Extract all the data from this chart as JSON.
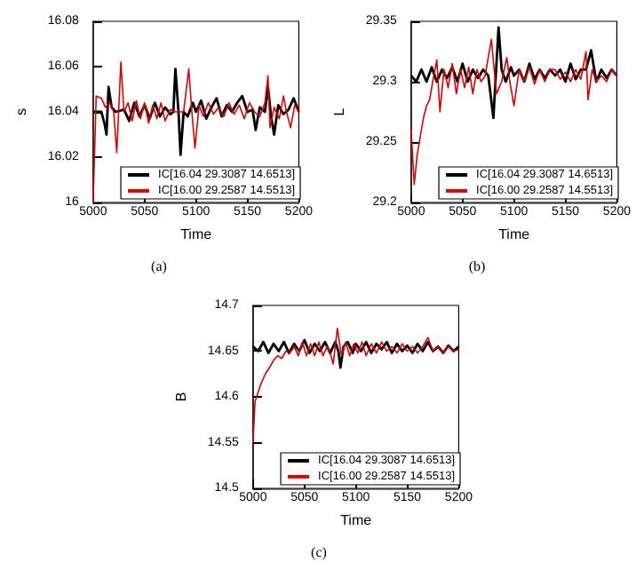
{
  "chart_data": [
    {
      "type": "line",
      "xlabel": "Time",
      "ylabel": "s",
      "xlim": [
        5000,
        5200
      ],
      "xticks": [
        5000,
        5050,
        5100,
        5150,
        5200
      ],
      "ylim": [
        16,
        16.08
      ],
      "yticks": [
        16,
        16.02,
        16.04,
        16.06,
        16.08
      ],
      "legend": "bottom right",
      "grid": false,
      "annotations": [
        "(a)"
      ],
      "series": [
        {
          "name": "IC[16.04 29.3087 14.6513]",
          "color": "#000000",
          "x": [
            5000,
            5008,
            5011,
            5013,
            5015,
            5018,
            5022,
            5030,
            5035,
            5040,
            5045,
            5050,
            5055,
            5060,
            5065,
            5070,
            5075,
            5078,
            5080,
            5083,
            5085,
            5088,
            5092,
            5097,
            5100,
            5105,
            5110,
            5115,
            5120,
            5125,
            5130,
            5135,
            5140,
            5145,
            5150,
            5155,
            5158,
            5162,
            5167,
            5170,
            5173,
            5176,
            5180,
            5185,
            5190,
            5195,
            5200
          ],
          "values": [
            16.04,
            16.04,
            16.035,
            16.03,
            16.051,
            16.042,
            16.04,
            16.041,
            16.036,
            16.044,
            16.038,
            16.043,
            16.037,
            16.044,
            16.038,
            16.042,
            16.039,
            16.04,
            16.059,
            16.04,
            16.021,
            16.04,
            16.038,
            16.044,
            16.04,
            16.045,
            16.037,
            16.042,
            16.046,
            16.038,
            16.043,
            16.04,
            16.044,
            16.047,
            16.04,
            16.041,
            16.032,
            16.042,
            16.04,
            16.051,
            16.038,
            16.03,
            16.043,
            16.039,
            16.041,
            16.046,
            16.04
          ]
        },
        {
          "name": "IC[16.00 29.2587 14.5513]",
          "color": "#e00000",
          "x": [
            5000,
            5003,
            5008,
            5012,
            5016,
            5020,
            5023,
            5027,
            5030,
            5034,
            5038,
            5042,
            5046,
            5050,
            5054,
            5058,
            5062,
            5066,
            5070,
            5075,
            5080,
            5088,
            5093,
            5096,
            5099,
            5103,
            5107,
            5112,
            5117,
            5122,
            5127,
            5132,
            5137,
            5142,
            5147,
            5152,
            5157,
            5162,
            5167,
            5170,
            5172,
            5176,
            5181,
            5185,
            5188,
            5192,
            5196,
            5200
          ],
          "values": [
            16.0,
            16.047,
            16.046,
            16.042,
            16.044,
            16.04,
            16.022,
            16.062,
            16.04,
            16.044,
            16.036,
            16.045,
            16.037,
            16.044,
            16.035,
            16.043,
            16.037,
            16.044,
            16.036,
            16.041,
            16.04,
            16.04,
            16.059,
            16.04,
            16.024,
            16.043,
            16.038,
            16.044,
            16.039,
            16.042,
            16.038,
            16.044,
            16.039,
            16.043,
            16.037,
            16.044,
            16.04,
            16.038,
            16.044,
            16.056,
            16.033,
            16.042,
            16.037,
            16.047,
            16.04,
            16.033,
            16.043,
            16.04
          ]
        }
      ]
    },
    {
      "type": "line",
      "xlabel": "Time",
      "ylabel": "L",
      "xlim": [
        5000,
        5200
      ],
      "xticks": [
        5000,
        5050,
        5100,
        5150,
        5200
      ],
      "ylim": [
        29.2,
        29.35
      ],
      "yticks": [
        29.2,
        29.25,
        29.3,
        29.35
      ],
      "legend": "bottom right",
      "grid": false,
      "annotations": [
        "(b)"
      ],
      "series": [
        {
          "name": "IC[16.04 29.3087 14.6513]",
          "color": "#000000",
          "x": [
            5000,
            5005,
            5010,
            5015,
            5020,
            5025,
            5030,
            5035,
            5040,
            5045,
            5050,
            5055,
            5060,
            5065,
            5070,
            5075,
            5080,
            5082,
            5085,
            5088,
            5092,
            5097,
            5100,
            5105,
            5110,
            5115,
            5120,
            5125,
            5130,
            5135,
            5140,
            5145,
            5150,
            5155,
            5160,
            5165,
            5170,
            5175,
            5180,
            5185,
            5190,
            5195,
            5200
          ],
          "values": [
            29.305,
            29.3,
            29.31,
            29.3,
            29.312,
            29.3,
            29.31,
            29.303,
            29.312,
            29.3,
            29.315,
            29.3,
            29.31,
            29.303,
            29.31,
            29.305,
            29.27,
            29.3,
            29.345,
            29.31,
            29.3,
            29.312,
            29.305,
            29.31,
            29.3,
            29.315,
            29.302,
            29.31,
            29.303,
            29.31,
            29.305,
            29.31,
            29.3,
            29.315,
            29.302,
            29.31,
            29.31,
            29.326,
            29.3,
            29.31,
            29.303,
            29.31,
            29.305
          ]
        },
        {
          "name": "IC[16.00 29.2587 14.5513]",
          "color": "#e00000",
          "x": [
            5000,
            5003,
            5006,
            5009,
            5012,
            5015,
            5018,
            5021,
            5025,
            5028,
            5032,
            5036,
            5040,
            5044,
            5048,
            5052,
            5056,
            5060,
            5064,
            5068,
            5072,
            5078,
            5083,
            5088,
            5093,
            5096,
            5100,
            5105,
            5110,
            5115,
            5120,
            5125,
            5130,
            5135,
            5140,
            5145,
            5150,
            5155,
            5160,
            5165,
            5170,
            5172,
            5176,
            5180,
            5185,
            5190,
            5195,
            5200
          ],
          "values": [
            29.26,
            29.215,
            29.24,
            29.255,
            29.27,
            29.28,
            29.285,
            29.3,
            29.318,
            29.275,
            29.31,
            29.295,
            29.315,
            29.29,
            29.31,
            29.295,
            29.312,
            29.29,
            29.31,
            29.3,
            29.305,
            29.335,
            29.29,
            29.3,
            29.32,
            29.3,
            29.28,
            29.31,
            29.3,
            29.312,
            29.298,
            29.31,
            29.3,
            29.31,
            29.31,
            29.302,
            29.308,
            29.3,
            29.31,
            29.302,
            29.325,
            29.285,
            29.31,
            29.3,
            29.305,
            29.3,
            29.31,
            29.305
          ]
        }
      ]
    },
    {
      "type": "line",
      "xlabel": "Time",
      "ylabel": "B",
      "xlim": [
        5000,
        5200
      ],
      "xticks": [
        5000,
        5050,
        5100,
        5150,
        5200
      ],
      "ylim": [
        14.5,
        14.7
      ],
      "yticks": [
        14.5,
        14.55,
        14.6,
        14.65,
        14.7
      ],
      "legend": "bottom right",
      "grid": false,
      "annotations": [
        "(c)"
      ],
      "series": [
        {
          "name": "IC[16.04 29.3087 14.6513]",
          "color": "#000000",
          "x": [
            5000,
            5005,
            5010,
            5015,
            5020,
            5025,
            5030,
            5035,
            5040,
            5045,
            5050,
            5055,
            5060,
            5065,
            5070,
            5075,
            5080,
            5083,
            5085,
            5088,
            5092,
            5097,
            5100,
            5105,
            5110,
            5115,
            5120,
            5125,
            5130,
            5135,
            5140,
            5145,
            5150,
            5155,
            5160,
            5165,
            5170,
            5175,
            5180,
            5185,
            5190,
            5195,
            5200
          ],
          "values": [
            14.655,
            14.65,
            14.66,
            14.648,
            14.658,
            14.65,
            14.66,
            14.648,
            14.658,
            14.65,
            14.662,
            14.648,
            14.658,
            14.65,
            14.66,
            14.648,
            14.66,
            14.65,
            14.632,
            14.655,
            14.66,
            14.648,
            14.658,
            14.65,
            14.66,
            14.648,
            14.658,
            14.652,
            14.66,
            14.648,
            14.658,
            14.65,
            14.656,
            14.648,
            14.658,
            14.65,
            14.66,
            14.65,
            14.655,
            14.648,
            14.656,
            14.65,
            14.655
          ]
        },
        {
          "name": "IC[16.00 29.2587 14.5513]",
          "color": "#e00000",
          "x": [
            5000,
            5002,
            5005,
            5008,
            5012,
            5016,
            5020,
            5024,
            5028,
            5032,
            5036,
            5040,
            5044,
            5048,
            5052,
            5056,
            5060,
            5064,
            5068,
            5072,
            5075,
            5078,
            5082,
            5086,
            5090,
            5094,
            5098,
            5102,
            5106,
            5110,
            5115,
            5120,
            5125,
            5130,
            5135,
            5140,
            5145,
            5150,
            5155,
            5160,
            5165,
            5170,
            5175,
            5180,
            5185,
            5190,
            5195,
            5200
          ],
          "values": [
            14.55,
            14.595,
            14.605,
            14.615,
            14.625,
            14.632,
            14.64,
            14.645,
            14.642,
            14.65,
            14.648,
            14.655,
            14.645,
            14.66,
            14.645,
            14.658,
            14.645,
            14.66,
            14.645,
            14.655,
            14.648,
            14.636,
            14.675,
            14.645,
            14.66,
            14.645,
            14.658,
            14.648,
            14.66,
            14.645,
            14.658,
            14.648,
            14.66,
            14.65,
            14.655,
            14.648,
            14.658,
            14.65,
            14.655,
            14.648,
            14.655,
            14.665,
            14.65,
            14.655,
            14.648,
            14.655,
            14.65,
            14.652
          ]
        }
      ]
    }
  ]
}
